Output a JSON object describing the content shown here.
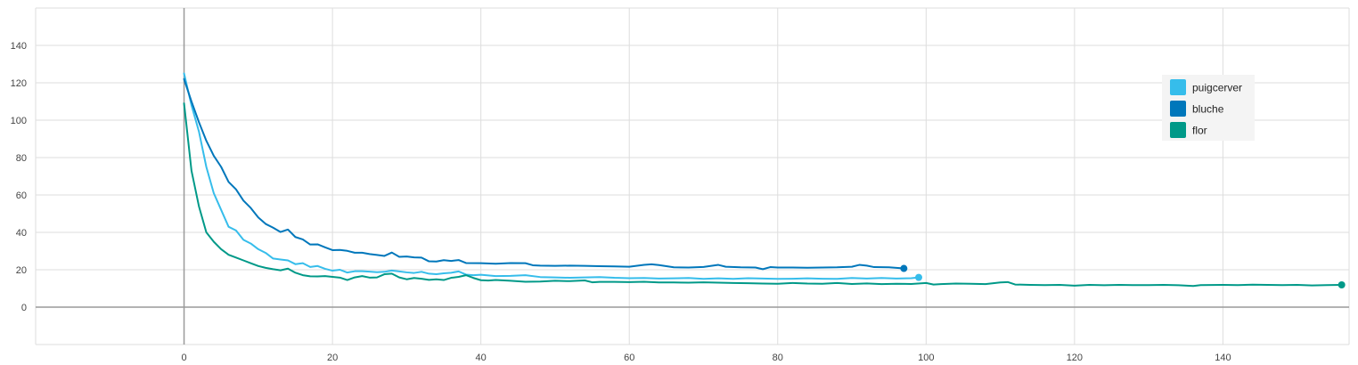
{
  "chart_data": {
    "type": "line",
    "title": "",
    "xlabel": "",
    "ylabel": "",
    "xlim": [
      -20,
      157
    ],
    "ylim": [
      -20,
      160
    ],
    "x_ticks": [
      0,
      20,
      40,
      60,
      80,
      100,
      120,
      140
    ],
    "y_ticks": [
      0,
      20,
      40,
      60,
      80,
      100,
      120,
      140
    ],
    "x_tick_labels": [
      "0",
      "20",
      "40",
      "60",
      "80",
      "100",
      "120",
      "140"
    ],
    "y_tick_labels": [
      "0",
      "20",
      "40",
      "60",
      "80",
      "100",
      "120",
      "140"
    ],
    "grid": true,
    "legend_position": "top-right",
    "legend": [
      "puigcerver",
      "bluche",
      "flor"
    ],
    "series": [
      {
        "name": "puigcerver",
        "color": "#36BDEB",
        "points": [
          [
            0,
            125
          ],
          [
            1,
            108
          ],
          [
            2,
            94
          ],
          [
            3,
            75
          ],
          [
            4,
            61
          ],
          [
            5,
            52
          ],
          [
            6,
            43
          ],
          [
            7,
            41
          ],
          [
            8,
            36
          ],
          [
            9,
            34
          ],
          [
            10,
            31
          ],
          [
            11,
            29
          ],
          [
            12,
            26
          ],
          [
            13,
            25.5
          ],
          [
            14,
            25
          ],
          [
            15,
            23
          ],
          [
            16,
            23.5
          ],
          [
            17,
            21.5
          ],
          [
            18,
            22
          ],
          [
            19,
            20.5
          ],
          [
            20,
            19.5
          ],
          [
            21,
            20
          ],
          [
            22,
            18.5
          ],
          [
            23,
            19.2
          ],
          [
            24,
            19.2
          ],
          [
            25,
            19
          ],
          [
            26,
            18.7
          ],
          [
            27,
            18.9
          ],
          [
            28,
            19.6
          ],
          [
            29,
            19.1
          ],
          [
            30,
            18.6
          ],
          [
            31,
            18.3
          ],
          [
            32,
            18.9
          ],
          [
            33,
            17.9
          ],
          [
            34,
            17.6
          ],
          [
            35,
            18.1
          ],
          [
            36,
            18.4
          ],
          [
            37,
            19.1
          ],
          [
            38,
            17.4
          ],
          [
            39,
            17.1
          ],
          [
            40,
            17.3
          ],
          [
            42,
            16.6
          ],
          [
            44,
            16.7
          ],
          [
            46,
            17.1
          ],
          [
            48,
            16.1
          ],
          [
            50,
            15.9
          ],
          [
            52,
            15.7
          ],
          [
            54,
            15.9
          ],
          [
            56,
            16.1
          ],
          [
            58,
            15.7
          ],
          [
            60,
            15.5
          ],
          [
            62,
            15.6
          ],
          [
            64,
            15.3
          ],
          [
            66,
            15.4
          ],
          [
            68,
            15.6
          ],
          [
            70,
            15.1
          ],
          [
            72,
            15.4
          ],
          [
            74,
            15.1
          ],
          [
            76,
            15.5
          ],
          [
            78,
            15.3
          ],
          [
            80,
            15.1
          ],
          [
            82,
            15.2
          ],
          [
            84,
            15.4
          ],
          [
            86,
            15.2
          ],
          [
            88,
            15.1
          ],
          [
            90,
            15.6
          ],
          [
            92,
            15.3
          ],
          [
            94,
            15.6
          ],
          [
            96,
            15.3
          ],
          [
            98,
            15.5
          ],
          [
            99,
            15.9
          ]
        ],
        "end_value": 15.9
      },
      {
        "name": "bluche",
        "color": "#0077BB",
        "points": [
          [
            0,
            122
          ],
          [
            1,
            110
          ],
          [
            2,
            99
          ],
          [
            3,
            89
          ],
          [
            4,
            81
          ],
          [
            5,
            75
          ],
          [
            6,
            67
          ],
          [
            7,
            63
          ],
          [
            8,
            57
          ],
          [
            9,
            53
          ],
          [
            10,
            48
          ],
          [
            11,
            44.5
          ],
          [
            12,
            42.5
          ],
          [
            13,
            40.2
          ],
          [
            14,
            41.5
          ],
          [
            15,
            37.5
          ],
          [
            16,
            36.2
          ],
          [
            17,
            33.5
          ],
          [
            18,
            33.6
          ],
          [
            19,
            32
          ],
          [
            20,
            30.5
          ],
          [
            21,
            30.6
          ],
          [
            22,
            30.1
          ],
          [
            23,
            29.1
          ],
          [
            24,
            29.1
          ],
          [
            25,
            28.4
          ],
          [
            26,
            27.9
          ],
          [
            27,
            27.4
          ],
          [
            28,
            29.2
          ],
          [
            29,
            26.9
          ],
          [
            30,
            27.1
          ],
          [
            31,
            26.6
          ],
          [
            32,
            26.5
          ],
          [
            33,
            24.5
          ],
          [
            34,
            24.4
          ],
          [
            35,
            25.1
          ],
          [
            36,
            24.7
          ],
          [
            37,
            25.2
          ],
          [
            38,
            23.6
          ],
          [
            40,
            23.5
          ],
          [
            42,
            23.2
          ],
          [
            44,
            23.6
          ],
          [
            46,
            23.5
          ],
          [
            47,
            22.4
          ],
          [
            48,
            22.2
          ],
          [
            50,
            22.1
          ],
          [
            52,
            22.2
          ],
          [
            54,
            22.1
          ],
          [
            56,
            21.9
          ],
          [
            58,
            21.8
          ],
          [
            60,
            21.6
          ],
          [
            62,
            22.6
          ],
          [
            63,
            22.9
          ],
          [
            64,
            22.5
          ],
          [
            66,
            21.3
          ],
          [
            68,
            21.2
          ],
          [
            70,
            21.5
          ],
          [
            72,
            22.6
          ],
          [
            73,
            21.6
          ],
          [
            75,
            21.3
          ],
          [
            77,
            21.2
          ],
          [
            78,
            20.3
          ],
          [
            79,
            21.4
          ],
          [
            80,
            21.2
          ],
          [
            82,
            21.2
          ],
          [
            84,
            21.1
          ],
          [
            86,
            21.2
          ],
          [
            88,
            21.3
          ],
          [
            90,
            21.6
          ],
          [
            91,
            22.6
          ],
          [
            92,
            22.2
          ],
          [
            93,
            21.4
          ],
          [
            95,
            21.3
          ],
          [
            97,
            20.7
          ]
        ],
        "end_value": 20.7
      },
      {
        "name": "flor",
        "color": "#009988",
        "points": [
          [
            0,
            109
          ],
          [
            1,
            73
          ],
          [
            2,
            54
          ],
          [
            3,
            40
          ],
          [
            4,
            35
          ],
          [
            5,
            31
          ],
          [
            6,
            28
          ],
          [
            7,
            26.5
          ],
          [
            8,
            25
          ],
          [
            9,
            23.5
          ],
          [
            10,
            22
          ],
          [
            11,
            21
          ],
          [
            12,
            20.3
          ],
          [
            13,
            19.7
          ],
          [
            14,
            20.6
          ],
          [
            15,
            18.4
          ],
          [
            16,
            17.1
          ],
          [
            17,
            16.5
          ],
          [
            18,
            16.4
          ],
          [
            19,
            16.6
          ],
          [
            20,
            16.2
          ],
          [
            21,
            15.8
          ],
          [
            22,
            14.5
          ],
          [
            23,
            15.9
          ],
          [
            24,
            16.6
          ],
          [
            25,
            15.8
          ],
          [
            26,
            15.9
          ],
          [
            27,
            17.6
          ],
          [
            28,
            17.9
          ],
          [
            29,
            15.9
          ],
          [
            30,
            14.9
          ],
          [
            31,
            15.6
          ],
          [
            32,
            15.2
          ],
          [
            33,
            14.6
          ],
          [
            34,
            14.9
          ],
          [
            35,
            14.5
          ],
          [
            36,
            15.7
          ],
          [
            37,
            16.2
          ],
          [
            38,
            17.1
          ],
          [
            39,
            15.6
          ],
          [
            40,
            14.4
          ],
          [
            41,
            14.2
          ],
          [
            42,
            14.5
          ],
          [
            44,
            14.1
          ],
          [
            46,
            13.6
          ],
          [
            48,
            13.7
          ],
          [
            50,
            14.1
          ],
          [
            52,
            13.9
          ],
          [
            54,
            14.3
          ],
          [
            55,
            13.3
          ],
          [
            56,
            13.5
          ],
          [
            58,
            13.5
          ],
          [
            60,
            13.4
          ],
          [
            62,
            13.6
          ],
          [
            64,
            13.2
          ],
          [
            66,
            13.2
          ],
          [
            68,
            13.1
          ],
          [
            70,
            13.3
          ],
          [
            72,
            13.1
          ],
          [
            74,
            12.9
          ],
          [
            76,
            12.8
          ],
          [
            78,
            12.6
          ],
          [
            80,
            12.5
          ],
          [
            82,
            12.9
          ],
          [
            84,
            12.6
          ],
          [
            86,
            12.5
          ],
          [
            88,
            12.9
          ],
          [
            90,
            12.4
          ],
          [
            92,
            12.7
          ],
          [
            94,
            12.3
          ],
          [
            96,
            12.5
          ],
          [
            98,
            12.4
          ],
          [
            100,
            12.9
          ],
          [
            101,
            12.1
          ],
          [
            102,
            12.3
          ],
          [
            104,
            12.6
          ],
          [
            106,
            12.5
          ],
          [
            108,
            12.3
          ],
          [
            110,
            13.2
          ],
          [
            111,
            13.4
          ],
          [
            112,
            12.1
          ],
          [
            114,
            11.9
          ],
          [
            116,
            11.8
          ],
          [
            118,
            11.9
          ],
          [
            120,
            11.5
          ],
          [
            122,
            11.9
          ],
          [
            124,
            11.7
          ],
          [
            126,
            11.9
          ],
          [
            128,
            11.8
          ],
          [
            130,
            11.8
          ],
          [
            132,
            11.9
          ],
          [
            134,
            11.7
          ],
          [
            136,
            11.3
          ],
          [
            137,
            11.8
          ],
          [
            140,
            11.9
          ],
          [
            142,
            11.8
          ],
          [
            144,
            12
          ],
          [
            146,
            11.9
          ],
          [
            148,
            11.8
          ],
          [
            150,
            11.9
          ],
          [
            152,
            11.6
          ],
          [
            154,
            11.8
          ],
          [
            156,
            11.9
          ]
        ],
        "end_value": 11.9
      }
    ]
  }
}
